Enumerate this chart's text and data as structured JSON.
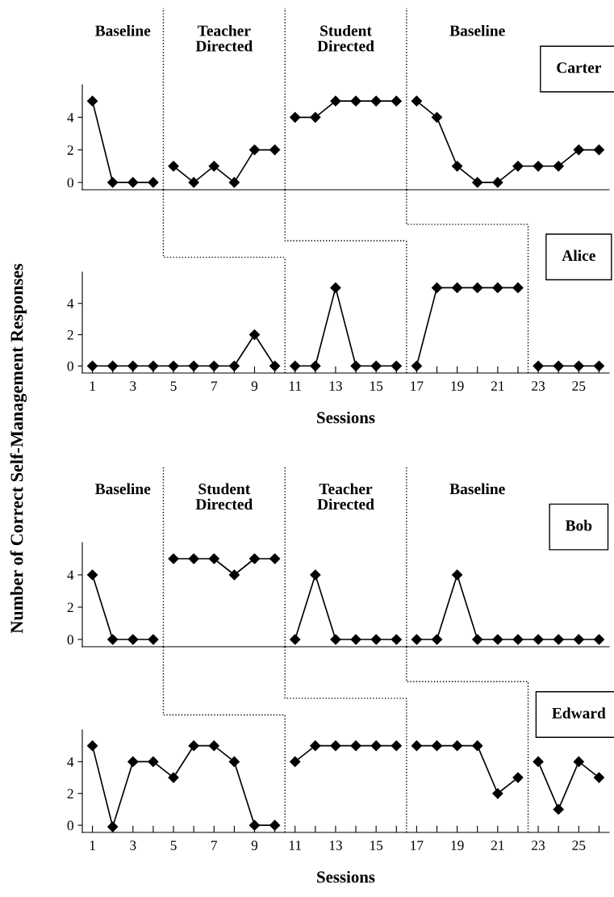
{
  "chart_data": [
    {
      "type": "line",
      "title": "Carter",
      "ylabel": "Number of Correct Self-Management Responses",
      "annotations": [
        "Baseline",
        "Teacher\nDirected",
        "Student\nDirected",
        "Baseline"
      ],
      "xlim": [
        0.5,
        26.5
      ],
      "ylim": [
        -0.45,
        6
      ],
      "yticks": [
        0,
        2,
        4
      ],
      "tick_labels": "y",
      "marker": "diamond",
      "line_style": "solid",
      "grid": false,
      "legend": false,
      "ref_lines": [
        {
          "axis": "x",
          "value": 4.5,
          "line_style": "dotted"
        },
        {
          "axis": "x",
          "value": 10.5,
          "line_style": "dotted"
        },
        {
          "axis": "x",
          "value": 16.5,
          "line_style": "dotted"
        }
      ],
      "series": [
        {
          "color": "#000000",
          "x": [
            1,
            2,
            3,
            4
          ],
          "values": [
            5,
            0,
            0,
            0
          ]
        },
        {
          "color": "#000000",
          "x": [
            5,
            6,
            7,
            8,
            9,
            10
          ],
          "values": [
            1,
            0,
            1,
            0,
            2,
            2
          ]
        },
        {
          "color": "#000000",
          "x": [
            11,
            12,
            13,
            14,
            15,
            16
          ],
          "values": [
            4,
            4,
            5,
            5,
            5,
            5
          ]
        },
        {
          "color": "#000000",
          "x": [
            17,
            18,
            19,
            20,
            21,
            22,
            23,
            24,
            25,
            26
          ],
          "values": [
            5,
            4,
            1,
            0,
            0,
            1,
            1,
            1,
            2,
            2
          ]
        }
      ]
    },
    {
      "type": "line",
      "title": "Alice",
      "xlabel": "Sessions",
      "xlim": [
        0.5,
        26.5
      ],
      "ylim": [
        -0.45,
        6
      ],
      "yticks": [
        0,
        2,
        4
      ],
      "marker": "diamond",
      "line_style": "solid",
      "grid": false,
      "legend": false,
      "xticks": [
        1,
        {
          "value": 2,
          "label": null
        },
        3,
        {
          "value": 4,
          "label": null
        },
        5,
        {
          "value": 6,
          "label": null
        },
        7,
        {
          "value": 8,
          "label": null
        },
        9,
        {
          "value": 10,
          "label": null
        },
        11,
        {
          "value": 12,
          "label": null
        },
        13,
        {
          "value": 14,
          "label": null
        },
        15,
        {
          "value": 16,
          "label": null
        },
        17,
        {
          "value": 18,
          "label": null
        },
        19,
        {
          "value": 20,
          "label": null
        },
        21,
        {
          "value": 22,
          "label": null
        },
        23,
        {
          "value": 24,
          "label": null
        },
        25,
        {
          "value": 26,
          "label": null
        }
      ],
      "ref_lines": [
        {
          "axis": "x",
          "value": 10.5,
          "line_style": "dotted"
        },
        {
          "axis": "x",
          "value": 16.5,
          "line_style": "dotted"
        },
        {
          "axis": "x",
          "value": 22.5,
          "line_style": "dotted"
        }
      ],
      "series": [
        {
          "color": "#000000",
          "x": [
            1,
            2,
            3,
            4,
            5,
            6,
            7,
            8,
            9,
            10
          ],
          "values": [
            0,
            0,
            0,
            0,
            0,
            0,
            0,
            0,
            2,
            0
          ]
        },
        {
          "color": "#000000",
          "x": [
            11,
            12,
            13,
            14,
            15,
            16
          ],
          "values": [
            0,
            0,
            5,
            0,
            0,
            0
          ]
        },
        {
          "color": "#000000",
          "x": [
            17,
            18,
            19,
            20,
            21,
            22
          ],
          "values": [
            0,
            5,
            5,
            5,
            5,
            5
          ]
        },
        {
          "color": "#000000",
          "x": [
            23,
            24,
            25,
            26
          ],
          "values": [
            0,
            0,
            0,
            0
          ]
        }
      ]
    },
    {
      "type": "line",
      "title": "Bob",
      "annotations": [
        "Baseline",
        "Student\nDirected",
        "Teacher\nDirected",
        "Baseline"
      ],
      "xlim": [
        0.5,
        26.5
      ],
      "ylim": [
        -0.45,
        6
      ],
      "yticks": [
        0,
        2,
        4
      ],
      "tick_labels": "y",
      "marker": "diamond",
      "line_style": "solid",
      "grid": false,
      "legend": false,
      "ref_lines": [
        {
          "axis": "x",
          "value": 4.5,
          "line_style": "dotted"
        },
        {
          "axis": "x",
          "value": 10.5,
          "line_style": "dotted"
        },
        {
          "axis": "x",
          "value": 16.5,
          "line_style": "dotted"
        }
      ],
      "series": [
        {
          "color": "#000000",
          "x": [
            1,
            2,
            3,
            4
          ],
          "values": [
            4,
            0,
            0,
            0
          ]
        },
        {
          "color": "#000000",
          "x": [
            5,
            6,
            7,
            8,
            9,
            10
          ],
          "values": [
            5,
            5,
            5,
            4,
            5,
            5
          ]
        },
        {
          "color": "#000000",
          "x": [
            11,
            12,
            13,
            14,
            15,
            16
          ],
          "values": [
            0,
            4,
            0,
            0,
            0,
            0
          ]
        },
        {
          "color": "#000000",
          "x": [
            17,
            18,
            19,
            20,
            21,
            22,
            23,
            24,
            25,
            26
          ],
          "values": [
            0,
            0,
            4,
            0,
            0,
            0,
            0,
            0,
            0,
            0
          ]
        }
      ]
    },
    {
      "type": "line",
      "title": "Edward",
      "xlabel": "Sessions",
      "xlim": [
        0.5,
        26.5
      ],
      "ylim": [
        -0.45,
        6
      ],
      "yticks": [
        0,
        2,
        4
      ],
      "marker": "diamond",
      "line_style": "solid",
      "grid": false,
      "legend": false,
      "xticks": [
        1,
        {
          "value": 2,
          "label": null
        },
        3,
        {
          "value": 4,
          "label": null
        },
        5,
        {
          "value": 6,
          "label": null
        },
        7,
        {
          "value": 8,
          "label": null
        },
        9,
        {
          "value": 10,
          "label": null
        },
        11,
        {
          "value": 12,
          "label": null
        },
        13,
        {
          "value": 14,
          "label": null
        },
        15,
        {
          "value": 16,
          "label": null
        },
        17,
        {
          "value": 18,
          "label": null
        },
        19,
        {
          "value": 20,
          "label": null
        },
        21,
        {
          "value": 22,
          "label": null
        },
        23,
        {
          "value": 24,
          "label": null
        },
        25,
        {
          "value": 26,
          "label": null
        }
      ],
      "ref_lines": [
        {
          "axis": "x",
          "value": 10.5,
          "line_style": "dotted"
        },
        {
          "axis": "x",
          "value": 16.5,
          "line_style": "dotted"
        },
        {
          "axis": "x",
          "value": 22.5,
          "line_style": "dotted"
        }
      ],
      "series": [
        {
          "color": "#000000",
          "x": [
            1,
            2,
            3,
            4,
            5,
            6,
            7,
            8,
            9,
            10
          ],
          "values": [
            5,
            -0.1,
            4,
            4,
            3,
            5,
            5,
            4,
            0,
            0
          ]
        },
        {
          "color": "#000000",
          "x": [
            11,
            12,
            13,
            14,
            15,
            16
          ],
          "values": [
            4,
            5,
            5,
            5,
            5,
            5
          ]
        },
        {
          "color": "#000000",
          "x": [
            17,
            18,
            19,
            20,
            21,
            22
          ],
          "values": [
            5,
            5,
            5,
            5,
            2,
            3
          ]
        },
        {
          "color": "#000000",
          "x": [
            23,
            24,
            25,
            26
          ],
          "values": [
            4,
            1,
            4,
            3
          ]
        }
      ]
    }
  ]
}
